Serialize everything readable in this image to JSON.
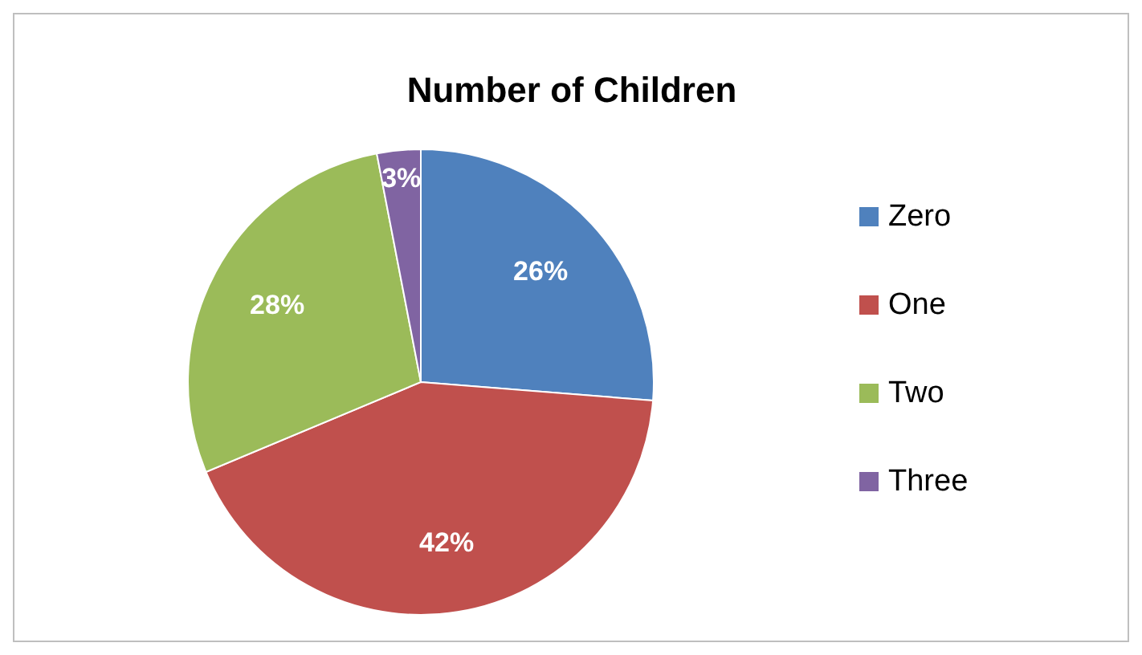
{
  "chart_data": {
    "type": "pie",
    "title": "Number of Children",
    "categories": [
      "Zero",
      "One",
      "Two",
      "Three"
    ],
    "values": [
      26,
      42,
      28,
      3
    ],
    "value_labels": [
      "26%",
      "42%",
      "28%",
      "3%"
    ],
    "colors": [
      "#4f81bd",
      "#c0504d",
      "#9bbb59",
      "#8064a2"
    ],
    "legend": "right"
  }
}
